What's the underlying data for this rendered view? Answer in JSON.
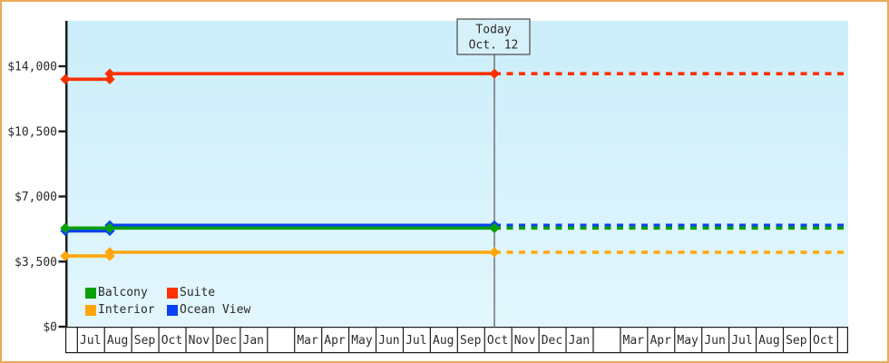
{
  "frame": {
    "border_color": "#edaa58",
    "background_color": "#ffffff"
  },
  "chart_data": {
    "type": "line",
    "title": "",
    "description_hint": "cruise cabin price history with dashed forecast after today marker",
    "today": {
      "line1": "Today",
      "line2": "Oct. 12"
    },
    "y_axis": {
      "tick_values": [
        0,
        3500,
        7000,
        10500,
        14000
      ],
      "tick_labels": [
        "$0",
        "$3,500",
        "$7,000",
        "$10,500",
        "$14,000"
      ],
      "range": [
        0,
        16400
      ],
      "grid": false
    },
    "x_axis": {
      "month_labels": [
        "Jul",
        "Aug",
        "Sep",
        "Oct",
        "Nov",
        "Dec",
        "Jan",
        "",
        "Mar",
        "Apr",
        "May",
        "Jun",
        "Jul",
        "Aug",
        "Sep",
        "Oct",
        "Nov",
        "Dec",
        "Jan",
        "",
        "Mar",
        "Apr",
        "May",
        "Jun",
        "Jul",
        "Aug",
        "Sep",
        "Oct"
      ]
    },
    "series": [
      {
        "name": "Balcony",
        "color": "#0aa00a",
        "start_value": 5300,
        "changed_value": 5300,
        "current_value": 5300
      },
      {
        "name": "Suite",
        "color": "#fd3101",
        "start_value": 13300,
        "changed_value": 13600,
        "current_value": 13600
      },
      {
        "name": "Interior",
        "color": "#ffa60b",
        "start_value": 3800,
        "changed_value": 4000,
        "current_value": 4000
      },
      {
        "name": "Ocean View",
        "color": "#0a41f5",
        "start_value": 5150,
        "changed_value": 5450,
        "current_value": 5450
      }
    ],
    "price_change_month": "Aug (early, year 1)",
    "legend_position": "bottom-left-inside",
    "forecast_style": "dashed-after-today",
    "plot_background": {
      "top": "#cbeefa",
      "bottom": "#e3f6fd"
    },
    "today_box_fill": "#d7f1fb"
  }
}
